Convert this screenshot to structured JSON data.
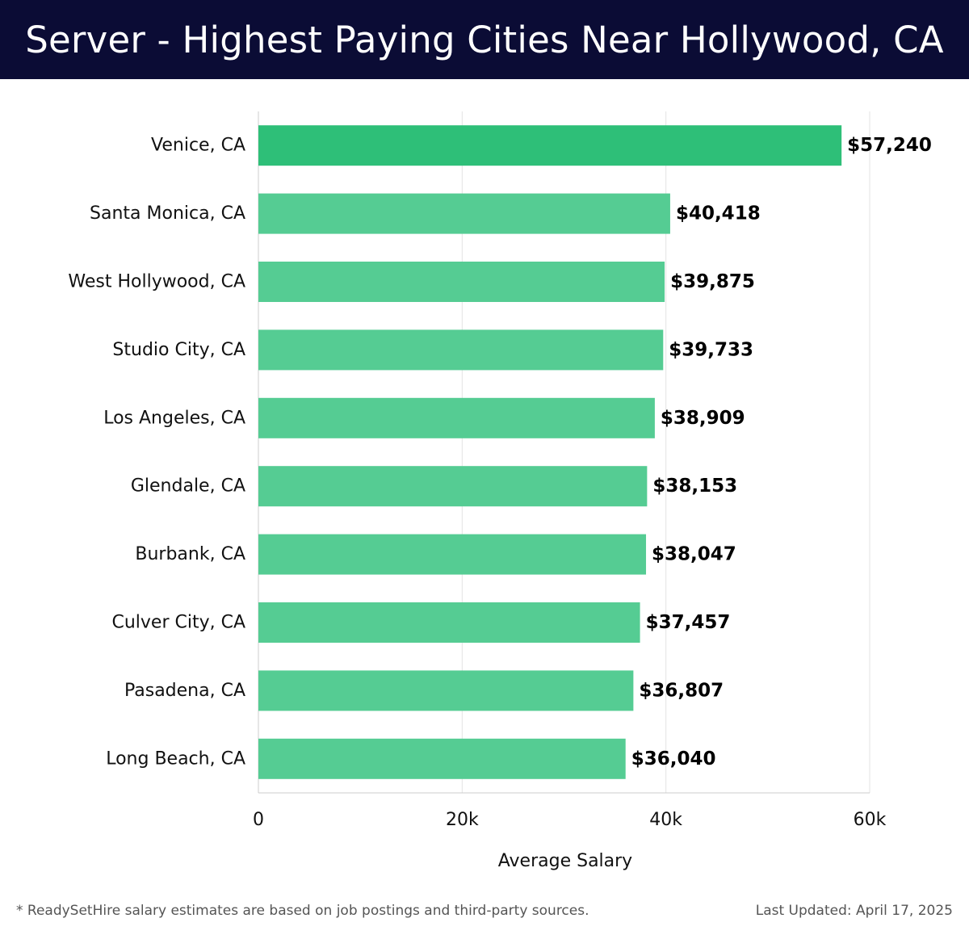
{
  "header": {
    "title": "Server - Highest Paying Cities Near Hollywood, CA"
  },
  "chart_data": {
    "type": "bar",
    "orientation": "horizontal",
    "title": "Server - Highest Paying Cities Near Hollywood, CA",
    "categories": [
      "Venice, CA",
      "Santa Monica, CA",
      "West Hollywood, CA",
      "Studio City, CA",
      "Los Angeles, CA",
      "Glendale, CA",
      "Burbank, CA",
      "Culver City, CA",
      "Pasadena, CA",
      "Long Beach, CA"
    ],
    "values": [
      57240,
      40418,
      39875,
      39733,
      38909,
      38153,
      38047,
      37457,
      36807,
      36040
    ],
    "value_labels": [
      "$57,240",
      "$40,418",
      "$39,875",
      "$39,733",
      "$38,909",
      "$38,153",
      "$38,047",
      "$37,457",
      "$36,807",
      "$36,040"
    ],
    "xlabel": "Average Salary",
    "ylabel": "",
    "xlim": [
      0,
      60000
    ],
    "x_ticks": [
      0,
      20000,
      40000,
      60000
    ],
    "x_tick_labels": [
      "0",
      "20k",
      "40k",
      "60k"
    ],
    "grid": true,
    "colors": {
      "highlight": "#2ebf78",
      "bar": "#55cc93",
      "grid": "#e3e3e3",
      "axis": "#cccccc"
    }
  },
  "footer": {
    "note": "* ReadySetHire salary estimates are based on job postings and third-party sources.",
    "updated": "Last Updated: April 17, 2025"
  }
}
